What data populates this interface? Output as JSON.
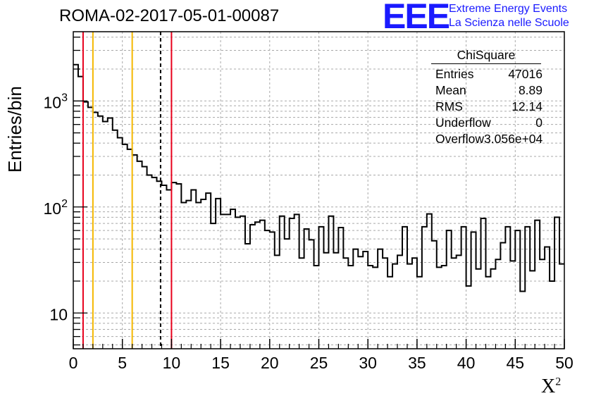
{
  "title": "ROMA-02-2017-05-01-00087",
  "logo": {
    "mark": "EEE",
    "line1": "Extreme Energy Events",
    "line2": "La Scienza nelle Scuole",
    "color": "#1a1aff"
  },
  "stats": {
    "name": "ChiSquare",
    "rows": [
      {
        "label": "Entries",
        "value": "47016"
      },
      {
        "label": "Mean",
        "value": "8.89"
      },
      {
        "label": "RMS",
        "value": "12.14"
      },
      {
        "label": "Underflow",
        "value": "0"
      },
      {
        "label": "Overflow",
        "value": "3.056e+04"
      }
    ]
  },
  "chart_data": {
    "type": "histogram",
    "xlabel": "X",
    "xlabel_sup": "2",
    "ylabel": "Entries/bin",
    "xlim": [
      0,
      50
    ],
    "ylim": [
      4.6,
      4500
    ],
    "log_y": true,
    "grid": true,
    "bin_width": 0.5,
    "x_ticks": [
      "0",
      "5",
      "10",
      "15",
      "20",
      "25",
      "30",
      "35",
      "40",
      "45",
      "50"
    ],
    "y_ticks": [
      {
        "value": 10,
        "base": "10",
        "exp": ""
      },
      {
        "value": 100,
        "base": "10",
        "exp": "2"
      },
      {
        "value": 1000,
        "base": "10",
        "exp": "3"
      }
    ],
    "values": [
      2200,
      1700,
      980,
      870,
      780,
      720,
      640,
      690,
      530,
      450,
      390,
      350,
      310,
      270,
      240,
      200,
      190,
      175,
      160,
      145,
      170,
      165,
      110,
      115,
      145,
      110,
      118,
      135,
      70,
      120,
      85,
      85,
      95,
      80,
      82,
      45,
      68,
      72,
      75,
      60,
      58,
      35,
      82,
      50,
      78,
      85,
      33,
      62,
      49,
      28,
      65,
      37,
      82,
      37,
      64,
      33,
      28,
      40,
      34,
      38,
      28,
      27,
      40,
      33,
      22,
      29,
      35,
      65,
      29,
      33,
      22,
      65,
      86,
      48,
      27,
      28,
      60,
      33,
      35,
      65,
      18,
      58,
      26,
      78,
      22,
      26,
      32,
      46,
      65,
      31,
      60,
      16,
      65,
      25,
      75,
      32,
      42,
      20,
      80,
      29
    ],
    "vertical_lines": [
      {
        "x": 1,
        "color": "#e8001c",
        "style": "solid"
      },
      {
        "x": 2,
        "color": "#f5b800",
        "style": "solid"
      },
      {
        "x": 6,
        "color": "#f5b800",
        "style": "solid"
      },
      {
        "x": 8.89,
        "color": "#000000",
        "style": "dashed"
      },
      {
        "x": 10,
        "color": "#e8001c",
        "style": "solid"
      }
    ]
  }
}
